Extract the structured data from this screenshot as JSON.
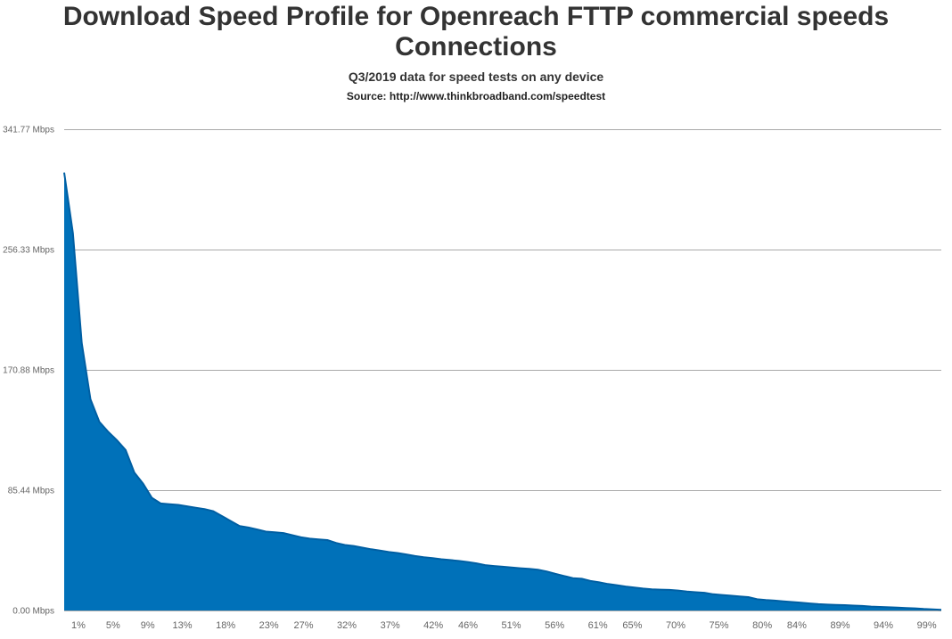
{
  "chart_data": {
    "type": "area",
    "title": "Download Speed Profile for Openreach FTTP commercial speeds Connections",
    "subtitle": "Q3/2019 data for speed tests on any device",
    "source": "Source: http://www.thinkbroadband.com/speedtest",
    "xlabel": "",
    "ylabel": "",
    "ylim": [
      0,
      341.77
    ],
    "y_ticks": [
      "0.00 Mbps",
      "85.44 Mbps",
      "170.88 Mbps",
      "256.33 Mbps",
      "341.77 Mbps"
    ],
    "y_tick_values": [
      0,
      85.44,
      170.88,
      256.33,
      341.77
    ],
    "x_tick_labels": [
      "1%",
      "5%",
      "9%",
      "13%",
      "18%",
      "23%",
      "27%",
      "32%",
      "37%",
      "42%",
      "46%",
      "51%",
      "56%",
      "61%",
      "65%",
      "70%",
      "75%",
      "80%",
      "84%",
      "89%",
      "94%",
      "99%"
    ],
    "x_percentile": [
      0,
      1,
      2,
      3,
      4,
      5,
      6,
      7,
      8,
      9,
      10,
      11,
      12,
      13,
      14,
      15,
      16,
      17,
      18,
      19,
      20,
      21,
      22,
      23,
      24,
      25,
      26,
      27,
      28,
      29,
      30,
      31,
      32,
      33,
      34,
      35,
      36,
      37,
      38,
      39,
      40,
      41,
      42,
      43,
      44,
      45,
      46,
      47,
      48,
      49,
      50,
      51,
      52,
      53,
      54,
      55,
      56,
      57,
      58,
      59,
      60,
      61,
      62,
      63,
      64,
      65,
      66,
      67,
      68,
      69,
      70,
      71,
      72,
      73,
      74,
      75,
      76,
      77,
      78,
      79,
      80,
      81,
      82,
      83,
      84,
      85,
      86,
      87,
      88,
      89,
      90,
      91,
      92,
      93,
      94,
      95,
      96,
      97,
      98,
      99,
      100
    ],
    "values": [
      311,
      268,
      190,
      150,
      134,
      127,
      121,
      114,
      98,
      90,
      80,
      76,
      75.5,
      75,
      74,
      73,
      72,
      70.5,
      67,
      63.5,
      60,
      59,
      57.5,
      56,
      55.5,
      55,
      53.5,
      52,
      51,
      50.5,
      50,
      48,
      46.5,
      45.8,
      44.6,
      43.5,
      42.5,
      41.5,
      40.8,
      39.8,
      38.7,
      37.8,
      37.2,
      36.4,
      35.8,
      35.2,
      34.4,
      33.5,
      32.2,
      31.6,
      31.1,
      30.5,
      30,
      29.6,
      29,
      27.7,
      26,
      24.5,
      23,
      22.5,
      21,
      20,
      18.8,
      18,
      17,
      16.3,
      15.6,
      15,
      14.8,
      14.6,
      14.2,
      13.5,
      13,
      12.6,
      11.5,
      11,
      10.5,
      10,
      9.5,
      8,
      7.4,
      7,
      6.5,
      6,
      5.5,
      5,
      4.5,
      4.2,
      4,
      3.8,
      3.5,
      3.2,
      2.8,
      2.5,
      2.3,
      2,
      1.8,
      1.5,
      1.1,
      0.8,
      0.5
    ],
    "grid": true,
    "legend": "none",
    "colors": {
      "fill": "#0071b9",
      "line": "#005fa3",
      "grid": "#aaaaaa"
    }
  }
}
